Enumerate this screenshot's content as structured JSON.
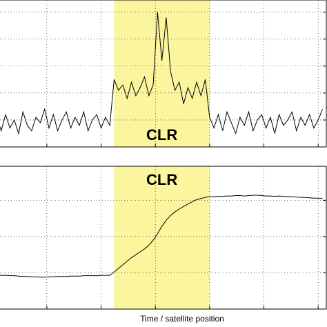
{
  "chart_data": [
    {
      "type": "line",
      "annotation": "CLR",
      "color": "#000000",
      "shade": [
        2.24,
        4.0
      ],
      "shade_color": "#fbf59e",
      "grid": true,
      "xlim": [
        0,
        6.15
      ],
      "xticks": [
        1,
        2,
        3,
        4,
        5,
        6
      ],
      "ylim": [
        0,
        5.45
      ],
      "yticks": [
        1,
        2,
        3,
        4,
        5
      ],
      "x": [
        0,
        0.08,
        0.16,
        0.24,
        0.32,
        0.4,
        0.48,
        0.56,
        0.64,
        0.72,
        0.8,
        0.88,
        0.96,
        1.04,
        1.12,
        1.2,
        1.28,
        1.36,
        1.44,
        1.52,
        1.6,
        1.68,
        1.76,
        1.84,
        1.92,
        2,
        2.08,
        2.16,
        2.24,
        2.32,
        2.4,
        2.48,
        2.56,
        2.64,
        2.72,
        2.8,
        2.88,
        2.96,
        3.04,
        3.12,
        3.2,
        3.28,
        3.36,
        3.44,
        3.52,
        3.6,
        3.68,
        3.76,
        3.84,
        3.92,
        4,
        4.08,
        4.16,
        4.24,
        4.32,
        4.4,
        4.48,
        4.56,
        4.64,
        4.72,
        4.8,
        4.88,
        4.96,
        5.04,
        5.12,
        5.2,
        5.28,
        5.36,
        5.44,
        5.52,
        5.6,
        5.68,
        5.76,
        5.84,
        5.92,
        6,
        6.08
      ],
      "values": [
        0.8,
        1.1,
        0.6,
        1.2,
        0.7,
        1.0,
        0.5,
        1.3,
        0.8,
        0.6,
        1.1,
        0.9,
        1.4,
        0.7,
        1.2,
        0.6,
        1.0,
        1.3,
        0.7,
        1.1,
        0.8,
        1.3,
        0.6,
        1.0,
        1.2,
        0.7,
        1.1,
        0.8,
        2.5,
        2.1,
        2.3,
        1.8,
        2.4,
        1.9,
        2.2,
        2.6,
        1.9,
        2.3,
        5.0,
        3.2,
        4.8,
        2.8,
        2.1,
        2.4,
        1.6,
        2.2,
        1.8,
        2.4,
        1.9,
        2.5,
        1.1,
        0.7,
        1.2,
        0.6,
        1.3,
        0.9,
        0.5,
        1.1,
        0.8,
        1.3,
        0.6,
        1.0,
        1.2,
        0.7,
        1.1,
        0.5,
        1.2,
        0.8,
        1.0,
        1.3,
        0.6,
        1.1,
        0.8,
        1.2,
        0.7,
        1.0,
        1.4
      ]
    },
    {
      "type": "line",
      "annotation": "CLR",
      "color": "#000000",
      "shade": [
        2.24,
        4.0
      ],
      "shade_color": "#fbf59e",
      "grid": true,
      "x_label": "Time / satellite position",
      "xlim": [
        0,
        6.15
      ],
      "xticks": [
        1,
        2,
        3,
        4,
        5,
        6
      ],
      "ylim": [
        0,
        3.94
      ],
      "yticks": [
        1,
        2,
        3
      ],
      "x": [
        0,
        0.08,
        0.16,
        0.24,
        0.32,
        0.4,
        0.48,
        0.56,
        0.64,
        0.72,
        0.8,
        0.88,
        0.96,
        1.04,
        1.12,
        1.2,
        1.28,
        1.36,
        1.44,
        1.52,
        1.6,
        1.68,
        1.76,
        1.84,
        1.92,
        2,
        2.08,
        2.16,
        2.24,
        2.32,
        2.4,
        2.48,
        2.56,
        2.64,
        2.72,
        2.8,
        2.88,
        2.96,
        3.04,
        3.12,
        3.2,
        3.28,
        3.36,
        3.44,
        3.52,
        3.6,
        3.68,
        3.76,
        3.84,
        3.92,
        4,
        4.08,
        4.16,
        4.24,
        4.32,
        4.4,
        4.48,
        4.56,
        4.64,
        4.72,
        4.8,
        4.88,
        4.96,
        5.04,
        5.12,
        5.2,
        5.28,
        5.36,
        5.44,
        5.52,
        5.6,
        5.68,
        5.76,
        5.84,
        5.92,
        6,
        6.08
      ],
      "values": [
        0.95,
        0.94,
        0.93,
        0.93,
        0.92,
        0.92,
        0.91,
        0.9,
        0.9,
        0.89,
        0.89,
        0.88,
        0.88,
        0.89,
        0.89,
        0.9,
        0.9,
        0.9,
        0.91,
        0.91,
        0.91,
        0.92,
        0.92,
        0.92,
        0.92,
        0.93,
        0.93,
        0.93,
        1.02,
        1.12,
        1.22,
        1.32,
        1.42,
        1.5,
        1.58,
        1.66,
        1.76,
        1.9,
        2.08,
        2.28,
        2.45,
        2.58,
        2.68,
        2.76,
        2.83,
        2.9,
        2.96,
        3.02,
        3.05,
        3.08,
        3.1,
        3.1,
        3.11,
        3.11,
        3.12,
        3.12,
        3.13,
        3.13,
        3.12,
        3.13,
        3.14,
        3.14,
        3.13,
        3.12,
        3.12,
        3.11,
        3.12,
        3.11,
        3.1,
        3.1,
        3.09,
        3.08,
        3.08,
        3.07,
        3.06,
        3.06,
        3.05
      ]
    }
  ]
}
